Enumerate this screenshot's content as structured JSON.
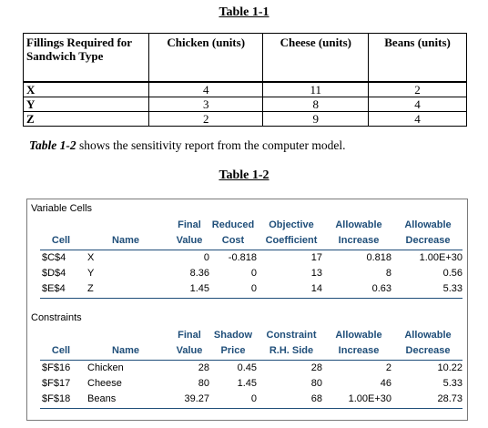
{
  "table1": {
    "title": "Table 1-1",
    "headers": [
      "Fillings Required for Sandwich Type",
      "Chicken (units)",
      "Cheese (units)",
      "Beans (units)"
    ],
    "rows": [
      [
        "X",
        "4",
        "11",
        "2"
      ],
      [
        "Y",
        "3",
        "8",
        "4"
      ],
      [
        "Z",
        "2",
        "9",
        "4"
      ]
    ]
  },
  "paragraph": {
    "ref": "Table 1-2",
    "text": " shows the sensitivity report from the computer model."
  },
  "table2": {
    "title": "Table 1-2",
    "variable_cells": {
      "section_label": "Variable Cells",
      "headers_top": [
        "",
        "",
        "Final",
        "Reduced",
        "Objective",
        "Allowable",
        "Allowable"
      ],
      "headers_bottom": [
        "Cell",
        "Name",
        "Value",
        "Cost",
        "Coefficient",
        "Increase",
        "Decrease"
      ],
      "rows": [
        [
          "$C$4",
          "X",
          "0",
          "-0.818",
          "17",
          "0.818",
          "1.00E+30"
        ],
        [
          "$D$4",
          "Y",
          "8.36",
          "0",
          "13",
          "8",
          "0.56"
        ],
        [
          "$E$4",
          "Z",
          "1.45",
          "0",
          "14",
          "0.63",
          "5.33"
        ]
      ]
    },
    "constraints": {
      "section_label": "Constraints",
      "headers_top": [
        "",
        "",
        "Final",
        "Shadow",
        "Constraint",
        "Allowable",
        "Allowable"
      ],
      "headers_bottom": [
        "Cell",
        "Name",
        "Value",
        "Price",
        "R.H. Side",
        "Increase",
        "Decrease"
      ],
      "rows": [
        [
          "$F$16",
          "Chicken",
          "28",
          "0.45",
          "28",
          "2",
          "10.22"
        ],
        [
          "$F$17",
          "Cheese",
          "80",
          "1.45",
          "80",
          "46",
          "5.33"
        ],
        [
          "$F$18",
          "Beans",
          "39.27",
          "0",
          "68",
          "1.00E+30",
          "28.73"
        ]
      ]
    }
  }
}
